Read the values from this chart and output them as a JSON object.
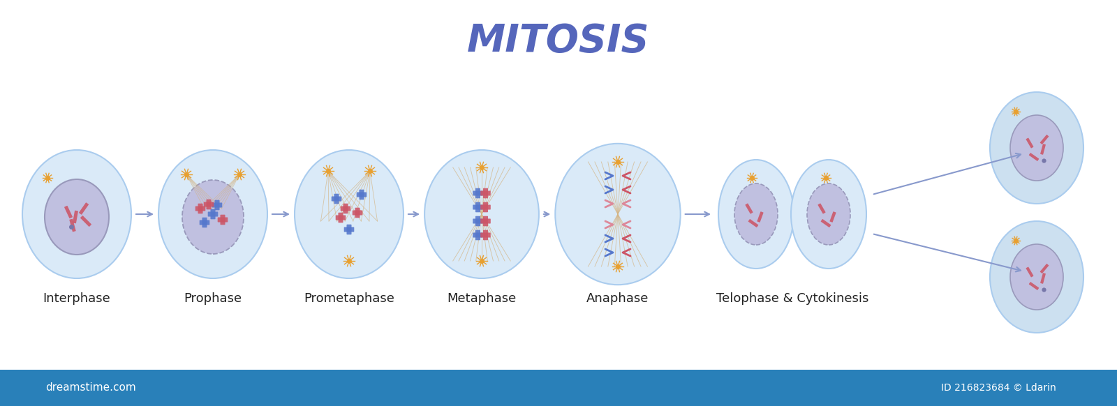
{
  "title": "MITOSIS",
  "title_color": "#5566bb",
  "title_fontsize": 40,
  "bg_color": "#ffffff",
  "cell_bg": "#daeaf8",
  "cell_outline": "#aaccee",
  "nucleus_color": "#c0c0e0",
  "nucleus_outline": "#9999bb",
  "phases": [
    "Interphase",
    "Prophase",
    "Prometaphase",
    "Metaphase",
    "Anaphase",
    "Telophase & Cytokinesis"
  ],
  "label_fontsize": 13,
  "label_color": "#222222",
  "arrow_color": "#8899cc",
  "spindle_color": "#d4b483",
  "chrom_blue": "#5577cc",
  "chrom_red": "#cc5566",
  "chrom_pink": "#dd8899",
  "centriole_color": "#e8a030",
  "daughter_cell_bg": "#cce0f0",
  "footer_bg": "#2980b9",
  "footer_text": "dreamstime.com",
  "footer_id": "ID 216823684 © Ldarin"
}
